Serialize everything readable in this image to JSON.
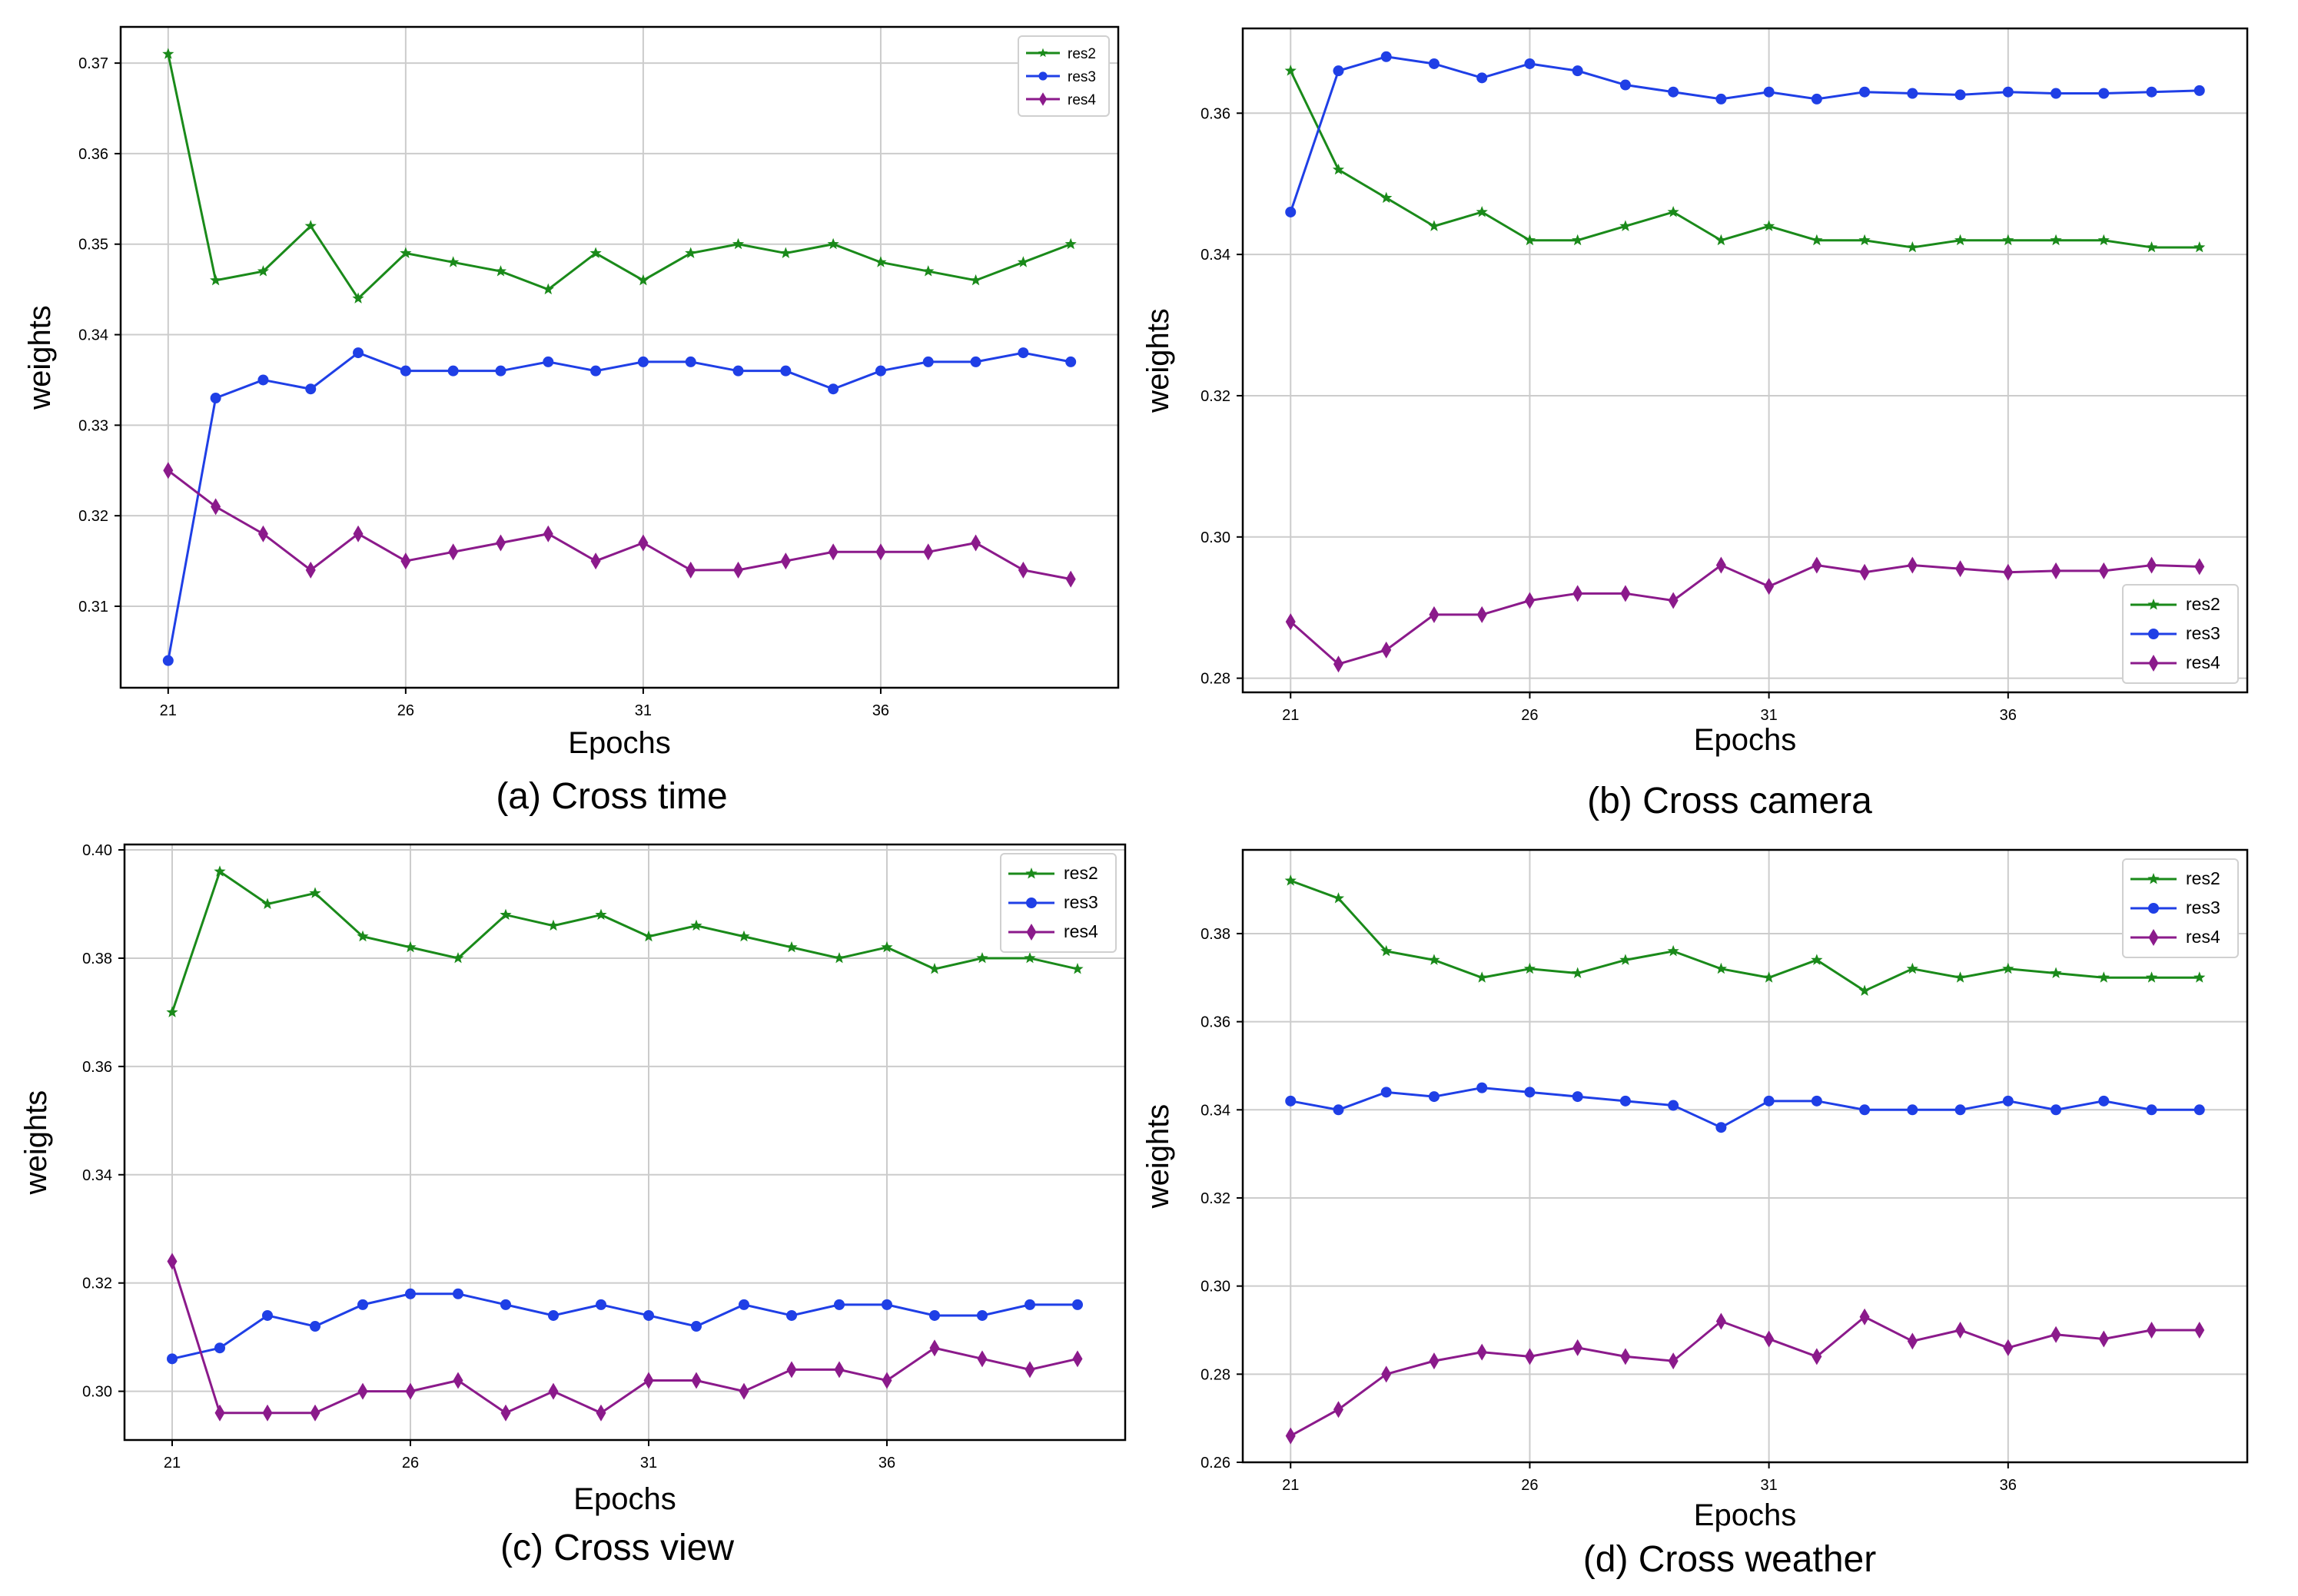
{
  "figure": {
    "colors": {
      "res2": "#1a8a1a",
      "res3": "#1f3fe6",
      "res4": "#8b1a8b",
      "grid": "#cccccc",
      "axis": "#000000"
    }
  },
  "chart_data": [
    {
      "type": "line",
      "caption": "(a) Cross time",
      "xlabel": "Epochs",
      "ylabel": "weights",
      "xlim": [
        20,
        41
      ],
      "ylim": [
        0.301,
        0.374
      ],
      "xticks": [
        21,
        26,
        31,
        36
      ],
      "xtick_labels": [
        "21",
        "26",
        "31",
        "36"
      ],
      "yticks": [
        0.31,
        0.32,
        0.33,
        0.34,
        0.35,
        0.36,
        0.37
      ],
      "ytick_labels": [
        "0.31",
        "0.32",
        "0.33",
        "0.34",
        "0.35",
        "0.36",
        "0.37"
      ],
      "legend_position": "top-right",
      "x": [
        21,
        22,
        23,
        24,
        25,
        26,
        27,
        28,
        29,
        30,
        31,
        32,
        33,
        34,
        35,
        36,
        37,
        38,
        39,
        40
      ],
      "series": [
        {
          "name": "res2",
          "marker": "star",
          "values": [
            0.371,
            0.346,
            0.347,
            0.352,
            0.344,
            0.349,
            0.348,
            0.347,
            0.345,
            0.349,
            0.346,
            0.349,
            0.35,
            0.349,
            0.35,
            0.348,
            0.347,
            0.346,
            0.348,
            0.35
          ]
        },
        {
          "name": "res3",
          "marker": "circle",
          "values": [
            0.304,
            0.333,
            0.335,
            0.334,
            0.338,
            0.336,
            0.336,
            0.336,
            0.337,
            0.336,
            0.337,
            0.337,
            0.336,
            0.336,
            0.334,
            0.336,
            0.337,
            0.337,
            0.338,
            0.337
          ]
        },
        {
          "name": "res4",
          "marker": "diamond",
          "values": [
            0.325,
            0.321,
            0.318,
            0.314,
            0.318,
            0.315,
            0.316,
            0.317,
            0.318,
            0.315,
            0.317,
            0.314,
            0.314,
            0.315,
            0.316,
            0.316,
            0.316,
            0.317,
            0.314,
            0.313
          ]
        }
      ]
    },
    {
      "type": "line",
      "caption": "(b)  Cross camera",
      "xlabel": "Epochs",
      "ylabel": "weights",
      "xlim": [
        20,
        41
      ],
      "ylim": [
        0.278,
        0.372
      ],
      "xticks": [
        21,
        26,
        31,
        36
      ],
      "xtick_labels": [
        "21",
        "26",
        "31",
        "36"
      ],
      "yticks": [
        0.28,
        0.3,
        0.32,
        0.34,
        0.36
      ],
      "ytick_labels": [
        "0.28",
        "0.30",
        "0.32",
        "0.34",
        "0.36"
      ],
      "legend_position": "bottom-right",
      "x": [
        21,
        22,
        23,
        24,
        25,
        26,
        27,
        28,
        29,
        30,
        31,
        32,
        33,
        34,
        35,
        36,
        37,
        38,
        39,
        40
      ],
      "series": [
        {
          "name": "res2",
          "marker": "star",
          "values": [
            0.366,
            0.352,
            0.348,
            0.344,
            0.346,
            0.342,
            0.342,
            0.344,
            0.346,
            0.342,
            0.344,
            0.342,
            0.342,
            0.341,
            0.342,
            0.342,
            0.342,
            0.342,
            0.341,
            0.341
          ]
        },
        {
          "name": "res3",
          "marker": "circle",
          "values": [
            0.346,
            0.366,
            0.368,
            0.367,
            0.365,
            0.367,
            0.366,
            0.364,
            0.363,
            0.362,
            0.363,
            0.362,
            0.363,
            0.3628,
            0.3626,
            0.363,
            0.3628,
            0.3628,
            0.363,
            0.3632
          ]
        },
        {
          "name": "res4",
          "marker": "diamond",
          "values": [
            0.288,
            0.282,
            0.284,
            0.289,
            0.289,
            0.291,
            0.292,
            0.292,
            0.291,
            0.296,
            0.293,
            0.296,
            0.295,
            0.296,
            0.2955,
            0.295,
            0.2952,
            0.2952,
            0.296,
            0.2958
          ]
        }
      ]
    },
    {
      "type": "line",
      "caption": "(c)   Cross view",
      "xlabel": "Epochs",
      "ylabel": "weights",
      "xlim": [
        20,
        41
      ],
      "ylim": [
        0.291,
        0.401
      ],
      "xticks": [
        21,
        26,
        31,
        36
      ],
      "xtick_labels": [
        "21",
        "26",
        "31",
        "36"
      ],
      "yticks": [
        0.3,
        0.32,
        0.34,
        0.36,
        0.38,
        0.4
      ],
      "ytick_labels": [
        "0.30",
        "0.32",
        "0.34",
        "0.36",
        "0.38",
        "0.40"
      ],
      "legend_position": "top-right",
      "x": [
        21,
        22,
        23,
        24,
        25,
        26,
        27,
        28,
        29,
        30,
        31,
        32,
        33,
        34,
        35,
        36,
        37,
        38,
        39,
        40
      ],
      "series": [
        {
          "name": "res2",
          "marker": "star",
          "values": [
            0.37,
            0.396,
            0.39,
            0.392,
            0.384,
            0.382,
            0.38,
            0.388,
            0.386,
            0.388,
            0.384,
            0.386,
            0.384,
            0.382,
            0.38,
            0.382,
            0.378,
            0.38,
            0.38,
            0.378
          ]
        },
        {
          "name": "res3",
          "marker": "circle",
          "values": [
            0.306,
            0.308,
            0.314,
            0.312,
            0.316,
            0.318,
            0.318,
            0.316,
            0.314,
            0.316,
            0.314,
            0.312,
            0.316,
            0.314,
            0.316,
            0.316,
            0.314,
            0.314,
            0.316,
            0.316
          ]
        },
        {
          "name": "res4",
          "marker": "diamond",
          "values": [
            0.324,
            0.296,
            0.296,
            0.296,
            0.3,
            0.3,
            0.302,
            0.296,
            0.3,
            0.296,
            0.302,
            0.302,
            0.3,
            0.304,
            0.304,
            0.302,
            0.308,
            0.306,
            0.304,
            0.306
          ]
        }
      ]
    },
    {
      "type": "line",
      "caption": "(d) Cross weather",
      "xlabel": "Epochs",
      "ylabel": "weights",
      "xlim": [
        20,
        41
      ],
      "ylim": [
        0.26,
        0.399
      ],
      "xticks": [
        21,
        26,
        31,
        36
      ],
      "xtick_labels": [
        "21",
        "26",
        "31",
        "36"
      ],
      "yticks": [
        0.26,
        0.28,
        0.3,
        0.32,
        0.34,
        0.36,
        0.38
      ],
      "ytick_labels": [
        "0.26",
        "0.28",
        "0.30",
        "0.32",
        "0.34",
        "0.36",
        "0.38"
      ],
      "legend_position": "top-right",
      "x": [
        21,
        22,
        23,
        24,
        25,
        26,
        27,
        28,
        29,
        30,
        31,
        32,
        33,
        34,
        35,
        36,
        37,
        38,
        39,
        40
      ],
      "series": [
        {
          "name": "res2",
          "marker": "star",
          "values": [
            0.392,
            0.388,
            0.376,
            0.374,
            0.37,
            0.372,
            0.371,
            0.374,
            0.376,
            0.372,
            0.37,
            0.374,
            0.367,
            0.372,
            0.37,
            0.372,
            0.371,
            0.37,
            0.37,
            0.37
          ]
        },
        {
          "name": "res3",
          "marker": "circle",
          "values": [
            0.342,
            0.34,
            0.344,
            0.343,
            0.345,
            0.344,
            0.343,
            0.342,
            0.341,
            0.336,
            0.342,
            0.342,
            0.34,
            0.34,
            0.34,
            0.342,
            0.34,
            0.342,
            0.34,
            0.34
          ]
        },
        {
          "name": "res4",
          "marker": "diamond",
          "values": [
            0.266,
            0.272,
            0.28,
            0.283,
            0.285,
            0.284,
            0.286,
            0.284,
            0.283,
            0.292,
            0.288,
            0.284,
            0.293,
            0.2875,
            0.29,
            0.286,
            0.289,
            0.288,
            0.29,
            0.29
          ]
        }
      ]
    }
  ]
}
